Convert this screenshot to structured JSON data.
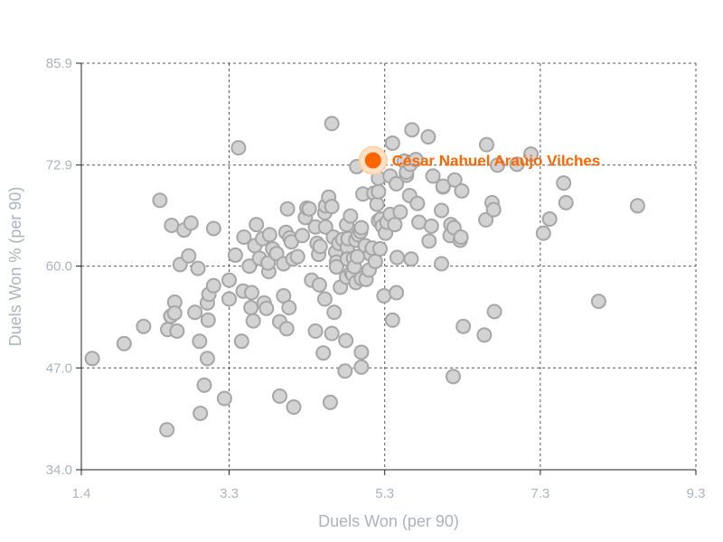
{
  "chart_data": {
    "type": "scatter",
    "xlabel": "Duels Won (per 90)",
    "ylabel": "Duels Won % (per 90)",
    "xlim": [
      1.4,
      9.3
    ],
    "ylim": [
      34.0,
      85.9
    ],
    "xticks": [
      "1.4",
      "3.3",
      "5.3",
      "7.3",
      "9.3"
    ],
    "yticks": [
      "34.0",
      "47.0",
      "60.0",
      "72.9",
      "85.9"
    ],
    "grid": true,
    "highlight": {
      "name": "César Nahuel Araújo Vilches",
      "x": 5.15,
      "y": 73.5,
      "color": "#ff6600"
    },
    "points": [
      [
        1.54,
        48.2
      ],
      [
        1.95,
        50.1
      ],
      [
        2.2,
        52.3
      ],
      [
        2.41,
        68.4
      ],
      [
        2.5,
        39.1
      ],
      [
        2.51,
        51.9
      ],
      [
        2.55,
        53.6
      ],
      [
        2.56,
        65.2
      ],
      [
        2.6,
        55.4
      ],
      [
        2.6,
        54.0
      ],
      [
        2.63,
        51.7
      ],
      [
        2.67,
        60.2
      ],
      [
        2.72,
        64.6
      ],
      [
        2.78,
        61.3
      ],
      [
        2.81,
        65.5
      ],
      [
        2.86,
        54.1
      ],
      [
        2.9,
        59.7
      ],
      [
        2.92,
        50.4
      ],
      [
        2.93,
        41.2
      ],
      [
        2.98,
        44.8
      ],
      [
        3.02,
        55.3
      ],
      [
        3.02,
        48.2
      ],
      [
        3.03,
        53.1
      ],
      [
        3.04,
        56.4
      ],
      [
        3.1,
        57.5
      ],
      [
        3.1,
        64.8
      ],
      [
        3.24,
        43.1
      ],
      [
        3.3,
        58.2
      ],
      [
        3.3,
        55.8
      ],
      [
        3.38,
        61.4
      ],
      [
        3.42,
        75.1
      ],
      [
        3.46,
        50.4
      ],
      [
        3.48,
        56.8
      ],
      [
        3.49,
        63.7
      ],
      [
        3.56,
        60.0
      ],
      [
        3.58,
        54.7
      ],
      [
        3.59,
        56.6
      ],
      [
        3.61,
        53.0
      ],
      [
        3.63,
        62.6
      ],
      [
        3.65,
        65.3
      ],
      [
        3.69,
        61.0
      ],
      [
        3.73,
        63.5
      ],
      [
        3.75,
        55.3
      ],
      [
        3.78,
        54.6
      ],
      [
        3.81,
        59.3
      ],
      [
        3.8,
        60.4
      ],
      [
        3.82,
        64.0
      ],
      [
        3.86,
        62.2
      ],
      [
        3.91,
        61.6
      ],
      [
        3.95,
        52.9
      ],
      [
        3.95,
        43.4
      ],
      [
        4.0,
        56.2
      ],
      [
        4.0,
        60.3
      ],
      [
        4.03,
        64.3
      ],
      [
        4.05,
        67.3
      ],
      [
        4.04,
        52.0
      ],
      [
        4.07,
        54.7
      ],
      [
        4.08,
        63.6
      ],
      [
        4.1,
        63.1
      ],
      [
        4.12,
        60.9
      ],
      [
        4.13,
        42.0
      ],
      [
        4.18,
        61.2
      ],
      [
        4.24,
        63.9
      ],
      [
        4.28,
        66.2
      ],
      [
        4.3,
        67.4
      ],
      [
        4.33,
        67.3
      ],
      [
        4.36,
        58.2
      ],
      [
        4.41,
        51.7
      ],
      [
        4.41,
        65.0
      ],
      [
        4.43,
        62.9
      ],
      [
        4.45,
        61.5
      ],
      [
        4.46,
        57.6
      ],
      [
        4.47,
        62.5
      ],
      [
        4.51,
        48.9
      ],
      [
        4.53,
        55.8
      ],
      [
        4.53,
        66.8
      ],
      [
        4.54,
        67.7
      ],
      [
        4.54,
        65.0
      ],
      [
        4.58,
        68.8
      ],
      [
        4.6,
        42.6
      ],
      [
        4.62,
        51.4
      ],
      [
        4.62,
        78.2
      ],
      [
        4.62,
        67.6
      ],
      [
        4.64,
        63.7
      ],
      [
        4.65,
        54.1
      ],
      [
        4.67,
        61.8
      ],
      [
        4.68,
        60.5
      ],
      [
        4.68,
        59.9
      ],
      [
        4.71,
        62.9
      ],
      [
        4.73,
        57.3
      ],
      [
        4.76,
        63.4
      ],
      [
        4.79,
        46.6
      ],
      [
        4.8,
        50.5
      ],
      [
        4.81,
        58.6
      ],
      [
        4.81,
        65.3
      ],
      [
        4.82,
        62.4
      ],
      [
        4.82,
        60.9
      ],
      [
        4.83,
        63.5
      ],
      [
        4.86,
        66.4
      ],
      [
        4.87,
        59.2
      ],
      [
        4.89,
        58.9
      ],
      [
        4.9,
        61.0
      ],
      [
        4.91,
        59.9
      ],
      [
        4.93,
        63.3
      ],
      [
        4.93,
        57.9
      ],
      [
        4.94,
        72.7
      ],
      [
        4.95,
        61.2
      ],
      [
        4.96,
        64.0
      ],
      [
        4.99,
        64.4
      ],
      [
        5.0,
        58.4
      ],
      [
        5.0,
        49.0
      ],
      [
        5.0,
        47.1
      ],
      [
        5.0,
        64.9
      ],
      [
        5.02,
        69.2
      ],
      [
        5.05,
        62.6
      ],
      [
        5.06,
        58.3
      ],
      [
        5.1,
        59.5
      ],
      [
        5.12,
        61.5
      ],
      [
        5.14,
        62.3
      ],
      [
        5.16,
        69.3
      ],
      [
        5.18,
        60.6
      ],
      [
        5.2,
        67.9
      ],
      [
        5.22,
        69.5
      ],
      [
        5.22,
        65.8
      ],
      [
        5.22,
        71.2
      ],
      [
        5.24,
        62.2
      ],
      [
        5.25,
        66.0
      ],
      [
        5.27,
        65.1
      ],
      [
        5.29,
        56.2
      ],
      [
        5.31,
        64.2
      ],
      [
        5.33,
        65.6
      ],
      [
        5.37,
        71.5
      ],
      [
        5.37,
        66.6
      ],
      [
        5.4,
        75.7
      ],
      [
        5.4,
        53.1
      ],
      [
        5.43,
        65.3
      ],
      [
        5.45,
        56.6
      ],
      [
        5.45,
        70.5
      ],
      [
        5.46,
        61.1
      ],
      [
        5.5,
        66.9
      ],
      [
        5.55,
        73.4
      ],
      [
        5.58,
        71.6
      ],
      [
        5.58,
        72.0
      ],
      [
        5.62,
        69.0
      ],
      [
        5.63,
        73.0
      ],
      [
        5.64,
        60.9
      ],
      [
        5.65,
        77.4
      ],
      [
        5.7,
        73.6
      ],
      [
        5.72,
        68.0
      ],
      [
        5.74,
        65.6
      ],
      [
        5.86,
        76.5
      ],
      [
        5.87,
        63.2
      ],
      [
        5.9,
        65.1
      ],
      [
        5.92,
        71.5
      ],
      [
        6.03,
        67.1
      ],
      [
        6.03,
        60.3
      ],
      [
        6.05,
        70.1
      ],
      [
        6.05,
        70.2
      ],
      [
        6.14,
        63.9
      ],
      [
        6.15,
        65.3
      ],
      [
        6.18,
        45.9
      ],
      [
        6.19,
        64.9
      ],
      [
        6.2,
        71.0
      ],
      [
        6.27,
        63.3
      ],
      [
        6.28,
        63.7
      ],
      [
        6.29,
        69.6
      ],
      [
        6.31,
        52.3
      ],
      [
        6.58,
        51.2
      ],
      [
        6.6,
        65.9
      ],
      [
        6.61,
        75.5
      ],
      [
        6.68,
        68.1
      ],
      [
        6.7,
        67.2
      ],
      [
        6.71,
        54.2
      ],
      [
        6.75,
        72.9
      ],
      [
        7.0,
        73.0
      ],
      [
        7.18,
        74.3
      ],
      [
        7.34,
        64.2
      ],
      [
        7.42,
        66.0
      ],
      [
        7.6,
        70.6
      ],
      [
        7.63,
        68.1
      ],
      [
        8.05,
        55.5
      ],
      [
        8.55,
        67.7
      ]
    ]
  }
}
